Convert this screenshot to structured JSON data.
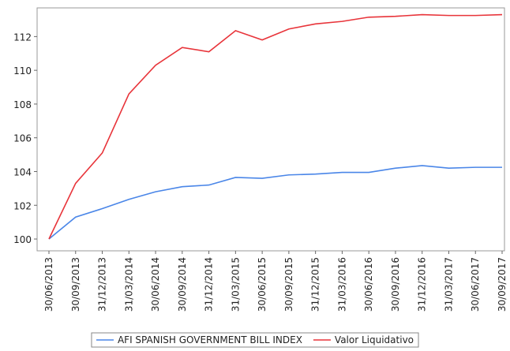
{
  "chart_data": {
    "type": "line",
    "categories": [
      "30/06/2013",
      "30/09/2013",
      "31/12/2013",
      "31/03/2014",
      "30/06/2014",
      "30/09/2014",
      "31/12/2014",
      "31/03/2015",
      "30/06/2015",
      "30/09/2015",
      "31/12/2015",
      "31/03/2016",
      "30/06/2016",
      "30/09/2016",
      "31/12/2016",
      "31/03/2017",
      "30/06/2017",
      "30/09/2017"
    ],
    "series": [
      {
        "name": "AFI SPANISH GOVERNMENT BILL INDEX",
        "color": "#4a86e8",
        "values": [
          100,
          101.3,
          101.8,
          102.35,
          102.8,
          103.1,
          103.2,
          103.65,
          103.6,
          103.8,
          103.85,
          103.95,
          103.95,
          104.2,
          104.35,
          104.2,
          104.25,
          104.25
        ]
      },
      {
        "name": "Valor Liquidativo",
        "color": "#e8343a",
        "values": [
          100,
          103.3,
          105.1,
          108.6,
          110.3,
          111.35,
          111.1,
          112.35,
          111.8,
          112.45,
          112.75,
          112.9,
          113.15,
          113.2,
          113.3,
          113.25,
          113.25,
          113.3
        ]
      }
    ],
    "ylim": [
      99.3,
      113.7
    ],
    "yticks": [
      100,
      102,
      104,
      106,
      108,
      110,
      112
    ],
    "legend": "bottom"
  }
}
